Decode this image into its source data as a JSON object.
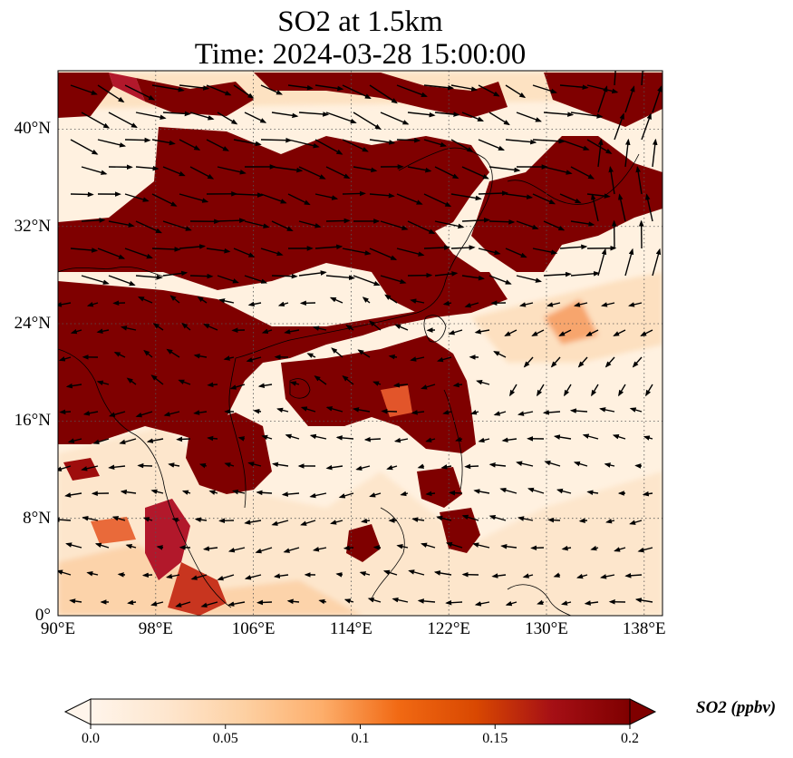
{
  "title": {
    "line1": "SO2 at 1.5km",
    "line2": "Time: 2024-03-28 15:00:00"
  },
  "map": {
    "lon_range": [
      90,
      139.5
    ],
    "lat_range": [
      0,
      44.8
    ],
    "gridlines": "dotted",
    "lon_ticks": [
      {
        "value": 90,
        "label": "90°E"
      },
      {
        "value": 98,
        "label": "98°E"
      },
      {
        "value": 106,
        "label": "106°E"
      },
      {
        "value": 114,
        "label": "114°E"
      },
      {
        "value": 122,
        "label": "122°E"
      },
      {
        "value": 130,
        "label": "130°E"
      },
      {
        "value": 138,
        "label": "138°E"
      }
    ],
    "lat_ticks": [
      {
        "value": 0,
        "label": "0°"
      },
      {
        "value": 8,
        "label": "8°N"
      },
      {
        "value": 16,
        "label": "16°N"
      },
      {
        "value": 24,
        "label": "24°N"
      },
      {
        "value": 32,
        "label": "32°N"
      },
      {
        "value": 40,
        "label": "40°N"
      }
    ]
  },
  "colorbar": {
    "label": "SO2 (ppbv)",
    "min": 0.0,
    "max": 0.2,
    "extend": "both",
    "colors": [
      "#fff5eb",
      "#fee6ce",
      "#fdd0a2",
      "#fdae6b",
      "#f16913",
      "#d94801",
      "#a50f15",
      "#7f0000"
    ],
    "ticks": [
      {
        "value": 0.0,
        "label": "0.0"
      },
      {
        "value": 0.05,
        "label": "0.05"
      },
      {
        "value": 0.1,
        "label": "0.1"
      },
      {
        "value": 0.15,
        "label": "0.15"
      },
      {
        "value": 0.2,
        "label": "0.2"
      }
    ]
  }
}
